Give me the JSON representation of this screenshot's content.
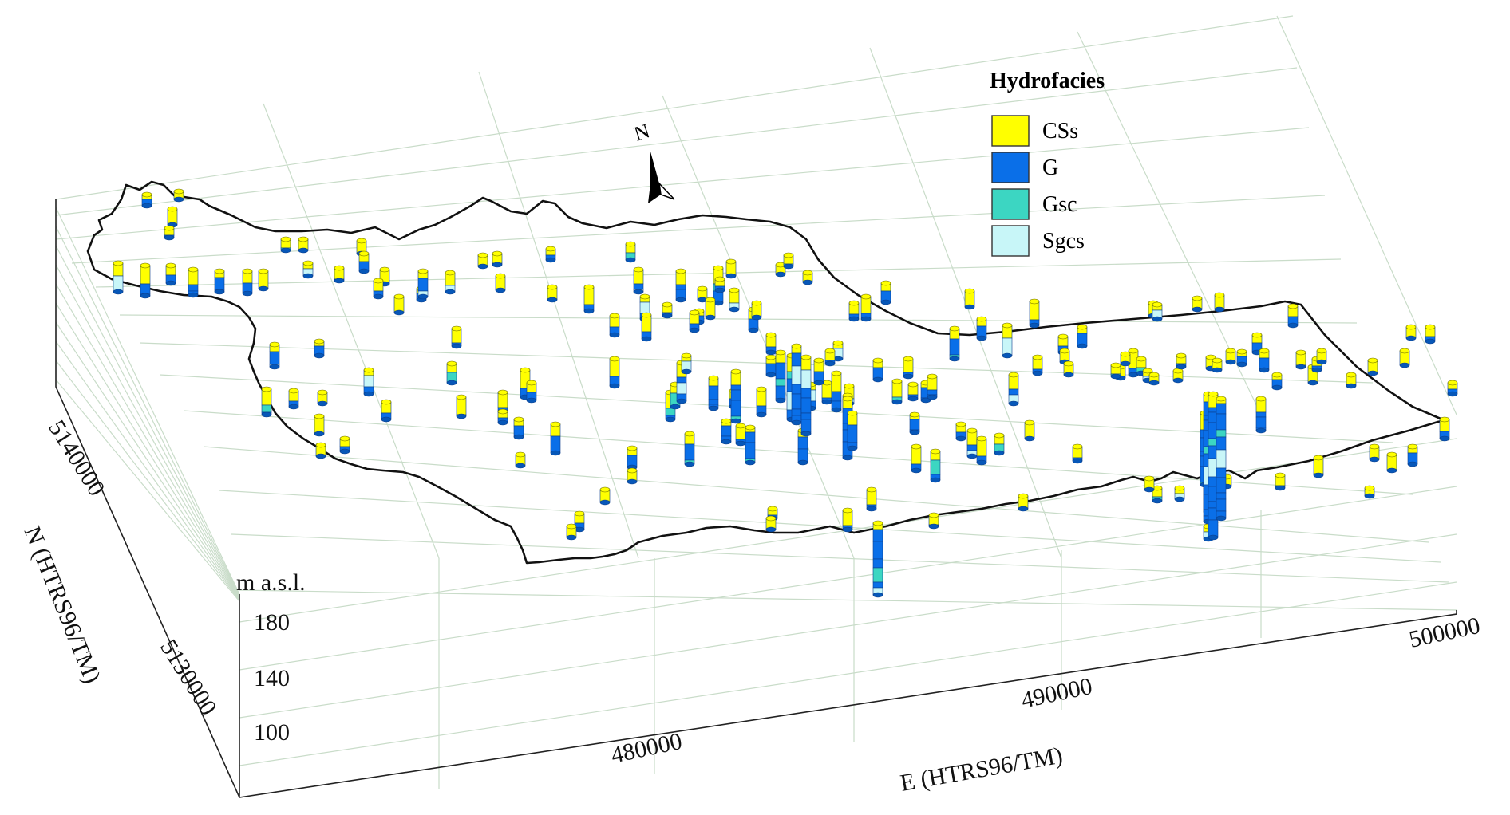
{
  "figure": {
    "legend": {
      "title": "Hydrofacies",
      "items": [
        {
          "label": "CSs",
          "color": "#ffff00"
        },
        {
          "label": "G",
          "color": "#0a6fe8"
        },
        {
          "label": "Gsc",
          "color": "#3cd6c2"
        },
        {
          "label": "Sgcs",
          "color": "#c8f6f8"
        }
      ]
    },
    "north_arrow": {
      "label": "N",
      "icon": "north-arrow-icon"
    },
    "axes": {
      "x_label": "E (HTRS96/TM)",
      "x_ticks": [
        "480000",
        "490000",
        "500000"
      ],
      "y_label": "N (HTRS96/TM)",
      "y_ticks": [
        "5140000",
        "5130000"
      ],
      "z_label": "m a.s.l.",
      "z_ticks": [
        "180",
        "140",
        "100"
      ]
    },
    "colors": {
      "grid": "#c9dcc9",
      "boundary": "#111111",
      "box": "#222222"
    }
  }
}
